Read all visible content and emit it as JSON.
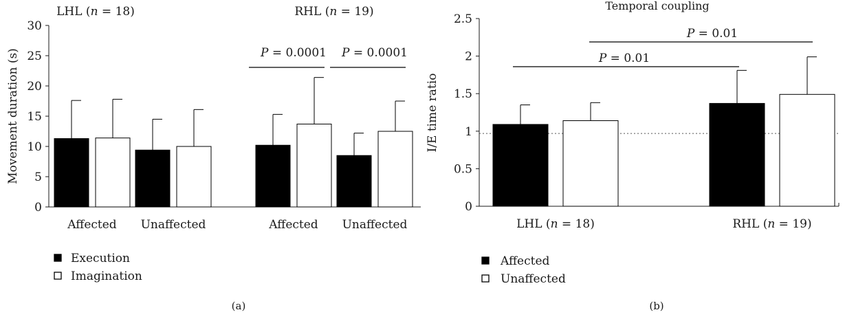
{
  "chart_data": [
    {
      "type": "bar",
      "panel_label": "(a)",
      "ylabel": "Movement duration (s)",
      "ylim": [
        0,
        30
      ],
      "yticks": [
        "0",
        "5",
        "10",
        "15",
        "20",
        "25",
        "30"
      ],
      "groups": [
        {
          "label": "LHL",
          "n_text": "18",
          "categories": [
            {
              "label": "Affected",
              "execution": 11.3,
              "execution_sd": 6.3,
              "imagination": 11.4,
              "imagination_sd": 6.4
            },
            {
              "label": "Unaffected",
              "execution": 9.4,
              "execution_sd": 5.1,
              "imagination": 10.0,
              "imagination_sd": 6.1
            }
          ]
        },
        {
          "label": "RHL",
          "n_text": "19",
          "categories": [
            {
              "label": "Affected",
              "execution": 10.2,
              "execution_sd": 5.1,
              "imagination": 13.7,
              "imagination_sd": 7.7
            },
            {
              "label": "Unaffected",
              "execution": 8.5,
              "execution_sd": 3.7,
              "imagination": 12.5,
              "imagination_sd": 5.0
            }
          ]
        }
      ],
      "significance": [
        {
          "label": "P = 0.0001",
          "group": 1,
          "category": 0
        },
        {
          "label": "P = 0.0001",
          "group": 1,
          "category": 1
        }
      ],
      "legend": [
        {
          "name": "Execution",
          "fill": "#000000"
        },
        {
          "name": "Imagination",
          "fill": "#ffffff"
        }
      ]
    },
    {
      "type": "bar",
      "panel_label": "(b)",
      "title": "Temporal coupling",
      "ylabel": "I/E time ratio",
      "ylim": [
        0,
        2.5
      ],
      "yticks": [
        "0",
        "0.5",
        "1",
        "1.5",
        "2",
        "2.5"
      ],
      "reference_line": 0.97,
      "categories": [
        {
          "label": "LHL",
          "n_text": "18",
          "affected": 1.09,
          "affected_sd": 0.26,
          "unaffected": 1.14,
          "unaffected_sd": 0.24
        },
        {
          "label": "RHL",
          "n_text": "19",
          "affected": 1.37,
          "affected_sd": 0.44,
          "unaffected": 1.49,
          "unaffected_sd": 0.5
        }
      ],
      "significance": [
        {
          "label": "P = 0.01",
          "series": "affected"
        },
        {
          "label": "P = 0.01",
          "series": "unaffected"
        }
      ],
      "legend": [
        {
          "name": "Affected",
          "fill": "#000000"
        },
        {
          "name": "Unaffected",
          "fill": "#ffffff"
        }
      ]
    }
  ]
}
